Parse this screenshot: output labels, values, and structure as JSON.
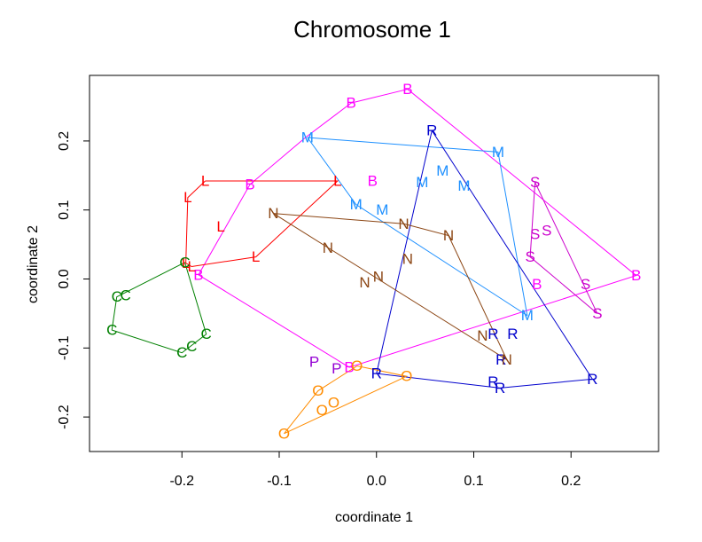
{
  "chart_data": {
    "type": "scatter",
    "title": "Chromosome 1",
    "xlabel": "coordinate 1",
    "ylabel": "coordinate 2",
    "xlim": [
      -0.295,
      0.29
    ],
    "ylim": [
      -0.25,
      0.295
    ],
    "xticks": [
      -0.2,
      -0.1,
      0.0,
      0.1,
      0.2
    ],
    "xtick_labels": [
      "-0.2",
      "-0.1",
      "0.0",
      "0.1",
      "0.2"
    ],
    "yticks": [
      -0.2,
      -0.1,
      0.0,
      0.1,
      0.2
    ],
    "ytick_labels": [
      "-0.2",
      "-0.1",
      "0.0",
      "0.1",
      "0.2"
    ],
    "grid": false,
    "legend": "none",
    "series": [
      {
        "name": "B",
        "color": "#FF00FF",
        "points": [
          [
            -0.026,
            0.255
          ],
          [
            0.032,
            0.275
          ],
          [
            -0.13,
            0.137
          ],
          [
            -0.183,
            0.006
          ],
          [
            0.267,
            0.005
          ],
          [
            -0.004,
            0.142
          ],
          [
            0.165,
            -0.008
          ],
          [
            -0.028,
            -0.128
          ]
        ],
        "hull": [
          [
            0.032,
            0.275
          ],
          [
            0.267,
            0.005
          ],
          [
            -0.028,
            -0.128
          ],
          [
            -0.183,
            0.006
          ],
          [
            -0.13,
            0.137
          ],
          [
            -0.073,
            0.205
          ],
          [
            -0.026,
            0.255
          ],
          [
            0.032,
            0.275
          ]
        ]
      },
      {
        "name": "M",
        "color": "#1E90FF",
        "points": [
          [
            -0.071,
            0.205
          ],
          [
            0.125,
            0.184
          ],
          [
            0.068,
            0.157
          ],
          [
            0.047,
            0.14
          ],
          [
            0.09,
            0.135
          ],
          [
            -0.021,
            0.108
          ],
          [
            0.006,
            0.1
          ],
          [
            0.155,
            -0.053
          ]
        ],
        "hull": [
          [
            -0.071,
            0.205
          ],
          [
            0.125,
            0.184
          ],
          [
            0.155,
            -0.053
          ],
          [
            -0.021,
            0.108
          ],
          [
            -0.071,
            0.205
          ]
        ]
      },
      {
        "name": "R",
        "color": "#0000CD",
        "points": [
          [
            0.057,
            0.215
          ],
          [
            0.12,
            -0.08
          ],
          [
            0.14,
            -0.08
          ],
          [
            0.128,
            -0.117
          ],
          [
            0.12,
            -0.149
          ],
          [
            0.127,
            -0.158
          ],
          [
            0.222,
            -0.145
          ],
          [
            0.0,
            -0.137
          ]
        ],
        "hull": [
          [
            0.057,
            0.215
          ],
          [
            0.222,
            -0.145
          ],
          [
            0.127,
            -0.158
          ],
          [
            0.0,
            -0.137
          ],
          [
            0.057,
            0.215
          ]
        ]
      },
      {
        "name": "S",
        "color": "#CC00CC",
        "points": [
          [
            0.163,
            0.14
          ],
          [
            0.163,
            0.065
          ],
          [
            0.175,
            0.07
          ],
          [
            0.158,
            0.032
          ],
          [
            0.215,
            -0.008
          ],
          [
            0.227,
            -0.05
          ]
        ],
        "hull": [
          [
            0.163,
            0.14
          ],
          [
            0.227,
            -0.05
          ],
          [
            0.158,
            0.032
          ],
          [
            0.163,
            0.14
          ]
        ]
      },
      {
        "name": "L",
        "color": "#FF0000",
        "points": [
          [
            -0.176,
            0.142
          ],
          [
            -0.194,
            0.118
          ],
          [
            -0.16,
            0.076
          ],
          [
            -0.124,
            0.032
          ],
          [
            -0.19,
            0.018
          ],
          [
            -0.196,
            0.023
          ],
          [
            -0.04,
            0.142
          ]
        ],
        "hull": [
          [
            -0.176,
            0.142
          ],
          [
            -0.04,
            0.142
          ],
          [
            -0.124,
            0.032
          ],
          [
            -0.19,
            0.018
          ],
          [
            -0.196,
            0.023
          ],
          [
            -0.194,
            0.118
          ],
          [
            -0.176,
            0.142
          ]
        ]
      },
      {
        "name": "N",
        "color": "#8B4513",
        "points": [
          [
            -0.106,
            0.095
          ],
          [
            0.028,
            0.08
          ],
          [
            0.074,
            0.063
          ],
          [
            -0.05,
            0.045
          ],
          [
            0.032,
            0.029
          ],
          [
            0.002,
            0.003
          ],
          [
            -0.012,
            -0.005
          ],
          [
            0.109,
            -0.082
          ],
          [
            0.134,
            -0.117
          ]
        ],
        "hull": [
          [
            -0.106,
            0.095
          ],
          [
            0.028,
            0.08
          ],
          [
            0.074,
            0.063
          ],
          [
            0.134,
            -0.117
          ],
          [
            -0.106,
            0.095
          ]
        ]
      },
      {
        "name": "C",
        "color": "#008000",
        "points": [
          [
            -0.197,
            0.024
          ],
          [
            -0.258,
            -0.024
          ],
          [
            -0.267,
            -0.026
          ],
          [
            -0.272,
            -0.074
          ],
          [
            -0.2,
            -0.107
          ],
          [
            -0.19,
            -0.098
          ],
          [
            -0.175,
            -0.08
          ]
        ],
        "hull": [
          [
            -0.197,
            0.024
          ],
          [
            -0.175,
            -0.08
          ],
          [
            -0.2,
            -0.107
          ],
          [
            -0.272,
            -0.074
          ],
          [
            -0.267,
            -0.026
          ],
          [
            -0.197,
            0.024
          ]
        ]
      },
      {
        "name": "P",
        "color": "#9400D3",
        "points": [
          [
            -0.064,
            -0.12
          ],
          [
            -0.041,
            -0.13
          ]
        ],
        "hull": []
      },
      {
        "name": "O",
        "color": "#FF8C00",
        "points": [
          [
            -0.06,
            -0.162
          ],
          [
            -0.044,
            -0.179
          ],
          [
            -0.056,
            -0.19
          ],
          [
            -0.095,
            -0.224
          ],
          [
            0.031,
            -0.141
          ],
          [
            -0.02,
            -0.126
          ]
        ],
        "hull": [
          [
            -0.02,
            -0.126
          ],
          [
            0.031,
            -0.141
          ],
          [
            -0.095,
            -0.224
          ],
          [
            -0.06,
            -0.162
          ],
          [
            -0.02,
            -0.126
          ]
        ]
      }
    ]
  }
}
